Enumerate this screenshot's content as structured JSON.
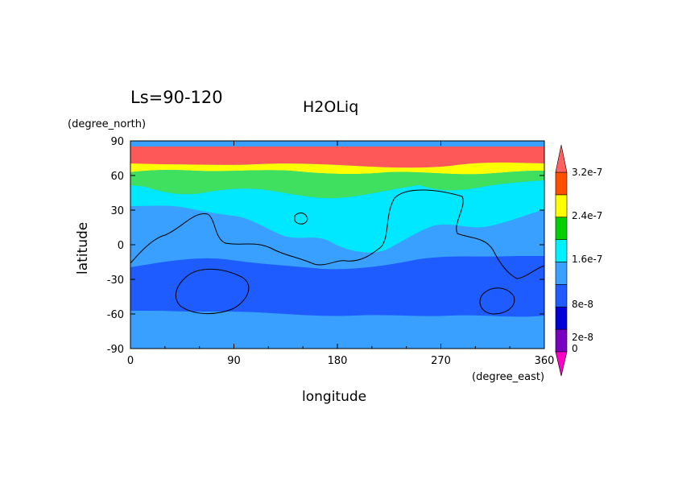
{
  "chart_data": {
    "type": "heatmap",
    "season_label": "Ls=90-120",
    "title": "H2OLiq",
    "xlabel": "longitude",
    "ylabel": "latitude",
    "x_unit_label": "(degree_east)",
    "y_unit_label": "(degree_north)",
    "xlim": [
      0,
      360
    ],
    "ylim": [
      -90,
      90
    ],
    "x_ticks": [
      "0",
      "90",
      "180",
      "270",
      "360"
    ],
    "y_ticks": [
      "90",
      "60",
      "30",
      "0",
      "-30",
      "-60",
      "-90"
    ],
    "colorbar": {
      "tick_labels": [
        "3.2e-7",
        "2.4e-7",
        "1.6e-7",
        "8e-8",
        "2e-8",
        "0"
      ],
      "bands": [
        {
          "color": "#ff00c8"
        },
        {
          "color": "#7a00c0"
        },
        {
          "color": "#0000d8"
        },
        {
          "color": "#1e5cff"
        },
        {
          "color": "#3aa0ff"
        },
        {
          "color": "#00f0ff"
        },
        {
          "color": "#00d000"
        },
        {
          "color": "#ffff00"
        },
        {
          "color": "#ff5000"
        },
        {
          "color": "#ff6060"
        }
      ]
    },
    "zones": [
      {
        "lat_range": [
          70,
          87
        ],
        "color": "#ff5858"
      },
      {
        "lat_range": [
          64,
          70
        ],
        "color": "#ffff00"
      },
      {
        "lat_range": [
          55,
          66
        ],
        "color": "#3fe060"
      },
      {
        "lat_range": [
          35,
          58
        ],
        "color": "#00e8ff"
      },
      {
        "lat_range": [
          -25,
          40
        ],
        "color": "#3aa0ff"
      },
      {
        "lat_range": [
          -55,
          -20
        ],
        "color": "#1e5cff"
      },
      {
        "lat_range": [
          -87,
          -55
        ],
        "color": "#3aa0ff"
      }
    ]
  }
}
